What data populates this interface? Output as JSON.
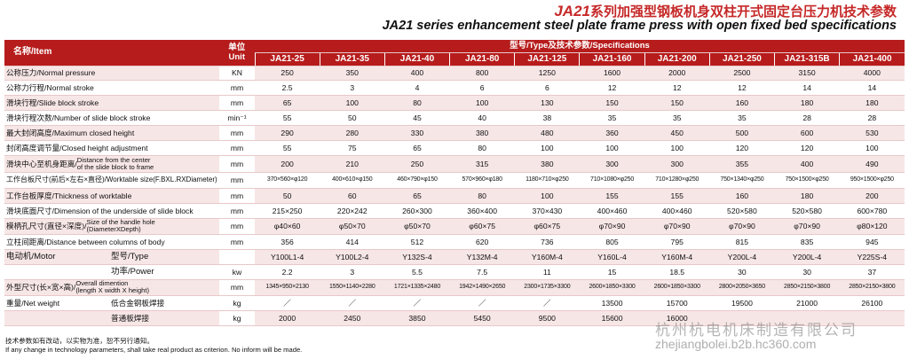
{
  "title": {
    "model_prefix": "JA21",
    "cn": "系列加强型钢板机身双柱开式固定台压力机技术参数",
    "en": "JA21 series enhancement steel plate frame press with open fixed bed specifications"
  },
  "header": {
    "item": "名称/Item",
    "unit": "单位 Unit",
    "spec": "型号/Type及技术参数/Specifications",
    "models": [
      "JA21-25",
      "JA21-35",
      "JA21-40",
      "JA21-80",
      "JA21-125",
      "JA21-160",
      "JA21-200",
      "JA21-250",
      "JA21-315B",
      "JA21-400"
    ]
  },
  "rows": [
    {
      "item": "公称压力/Normal pressure",
      "unit": "KN",
      "values": [
        "250",
        "350",
        "400",
        "800",
        "1250",
        "1600",
        "2000",
        "2500",
        "3150",
        "4000"
      ]
    },
    {
      "item": "公称力行程/Normal stroke",
      "unit": "mm",
      "values": [
        "2.5",
        "3",
        "4",
        "6",
        "6",
        "12",
        "12",
        "12",
        "14",
        "14"
      ]
    },
    {
      "item": "滑块行程/Slide block stroke",
      "unit": "mm",
      "values": [
        "65",
        "100",
        "80",
        "100",
        "130",
        "150",
        "150",
        "160",
        "180",
        "180"
      ]
    },
    {
      "item": "滑块行程次数/Number of slide block stroke",
      "unit": "min⁻¹",
      "values": [
        "55",
        "50",
        "45",
        "40",
        "38",
        "35",
        "35",
        "35",
        "28",
        "28"
      ]
    },
    {
      "item": "最大封闭高度/Maximum closed height",
      "unit": "mm",
      "values": [
        "290",
        "280",
        "330",
        "380",
        "480",
        "360",
        "450",
        "500",
        "600",
        "530"
      ]
    },
    {
      "item": "封闭高度调节量/Closed height adjustment",
      "unit": "mm",
      "values": [
        "55",
        "75",
        "65",
        "80",
        "100",
        "100",
        "100",
        "120",
        "120",
        "100"
      ]
    },
    {
      "item_cn": "滑块中心至机身距离/",
      "item_en1": "Distance from the center",
      "item_en2": "of the slide block to frame",
      "unit": "mm",
      "values": [
        "200",
        "210",
        "250",
        "315",
        "380",
        "300",
        "300",
        "355",
        "400",
        "490"
      ]
    },
    {
      "item": "工作台板尺寸(前后×左右×直径)/Worktable size(F.BXL.RXDiameter)",
      "unit": "mm",
      "small": true,
      "values": [
        "370×560×φ120",
        "400×610×φ150",
        "460×790×φ150",
        "570×960×φ180",
        "1180×710×φ250",
        "710×1080×φ250",
        "710×1280×φ250",
        "750×1340×φ250",
        "750×1500×φ250",
        "950×1500×φ250"
      ]
    },
    {
      "item": "工作台板厚度/Thickness of worktable",
      "unit": "mm",
      "values": [
        "50",
        "60",
        "65",
        "80",
        "100",
        "155",
        "155",
        "160",
        "180",
        "200"
      ]
    },
    {
      "item": "滑块底面尺寸/Dimension of the underside of slide block",
      "unit": "mm",
      "values": [
        "215×250",
        "220×242",
        "260×300",
        "360×400",
        "370×430",
        "400×460",
        "400×460",
        "520×580",
        "520×580",
        "600×780"
      ]
    },
    {
      "item_cn": "模柄孔尺寸(直径×深度)/",
      "item_en1": "Size of the handle hole",
      "item_en2": "(DiameterXDepth)",
      "unit": "mm",
      "values": [
        "φ40×60",
        "φ50×70",
        "φ50×70",
        "φ60×75",
        "φ60×75",
        "φ70×90",
        "φ70×90",
        "φ70×90",
        "φ70×90",
        "φ80×120"
      ]
    },
    {
      "item": "立柱间距离/Distance between columns of body",
      "unit": "mm",
      "values": [
        "356",
        "414",
        "512",
        "620",
        "736",
        "805",
        "795",
        "815",
        "835",
        "945"
      ]
    },
    {
      "motor": "电动机/Motor",
      "item": "型号/Type",
      "unit": "",
      "values": [
        "Y100L1-4",
        "Y100L2-4",
        "Y132S-4",
        "Y132M-4",
        "Y160M-4",
        "Y160L-4",
        "Y160M-4",
        "Y200L-4",
        "Y200L-4",
        "Y225S-4"
      ]
    },
    {
      "item": "功率/Power",
      "unit": "kw",
      "values": [
        "2.2",
        "3",
        "5.5",
        "7.5",
        "11",
        "15",
        "18.5",
        "30",
        "30",
        "37"
      ]
    },
    {
      "item_cn": "外型尺寸(长×宽×高)/",
      "item_en1": "Overall dimention",
      "item_en2": "(length X width X height)",
      "unit": "mm",
      "small": true,
      "values": [
        "1345×950×2130",
        "1550×1140×2280",
        "1721×1335×2480",
        "1942×1490×2650",
        "2300×1735×3300",
        "2600×1850×3300",
        "2600×1850×3300",
        "2800×2050×3650",
        "2850×2150×3800",
        "2850×2150×3800"
      ]
    },
    {
      "netw": "重量/Net weight",
      "item": "低合金钢板焊接",
      "unit": "kg",
      "values": [
        "／",
        "／",
        "／",
        "／",
        "／",
        "13500",
        "15700",
        "19500",
        "21000",
        "26100"
      ]
    },
    {
      "item": "普通板焊接",
      "unit": "kg",
      "values": [
        "2000",
        "2450",
        "3850",
        "5450",
        "9500",
        "15600",
        "16000",
        "",
        "",
        ""
      ]
    }
  ],
  "footnotes": {
    "cn": "技术参数如有改动，以实物为准，恕不另行通知。",
    "en": "If any change in technology parameters, shall take real product as criterion. No inform will be made."
  },
  "watermark": {
    "cn": "杭州杭电机床制造有限公司",
    "url": "zhejiangbolei.b2b.hc360.com"
  }
}
